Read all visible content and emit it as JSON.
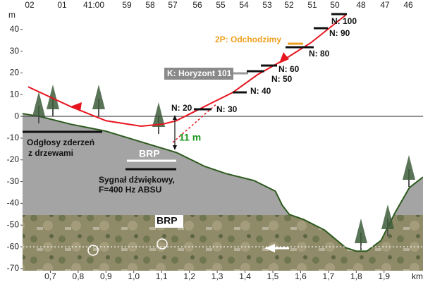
{
  "chart_data": {
    "type": "line",
    "x_label": "km",
    "y_label": "m",
    "xlim": [
      0.6,
      2.04
    ],
    "ylim": [
      -71,
      49
    ],
    "xticks": [
      {
        "value": 0.7,
        "label": "0,7"
      },
      {
        "value": 0.8,
        "label": "0,8"
      },
      {
        "value": 0.9,
        "label": "0,9"
      },
      {
        "value": 1.0,
        "label": "1,0"
      },
      {
        "value": 1.1,
        "label": "1,1"
      },
      {
        "value": 1.2,
        "label": "1,2"
      },
      {
        "value": 1.3,
        "label": "1,3"
      },
      {
        "value": 1.4,
        "label": "1,4"
      },
      {
        "value": 1.5,
        "label": "1,5"
      },
      {
        "value": 1.6,
        "label": "1,6"
      },
      {
        "value": 1.7,
        "label": "1,7"
      },
      {
        "value": 1.8,
        "label": "1,8"
      },
      {
        "value": 1.9,
        "label": "1,9"
      }
    ],
    "yticks": [
      40,
      30,
      20,
      10,
      0,
      -10,
      -20,
      -30,
      -40,
      -50,
      -60,
      -70
    ],
    "top_labels": [
      "02",
      "01",
      "41:00",
      "59",
      "58",
      "57",
      "56",
      "55",
      "54",
      "53",
      "52",
      "51",
      "50",
      "48",
      "47",
      "46"
    ],
    "baseline": 0,
    "ref_line": -60,
    "trajectory": {
      "color": "#e8141e",
      "x": [
        0.62,
        0.773,
        0.9,
        1.026,
        1.103,
        1.153,
        1.204,
        1.28,
        1.356,
        1.445,
        1.534,
        1.636,
        1.762
      ],
      "values": [
        13.6,
        4.5,
        -2,
        -4.5,
        -3.6,
        -2,
        1.3,
        6.2,
        11,
        19.2,
        25.6,
        33.8,
        46.6
      ]
    },
    "extrapolation": {
      "color": "#e8141e",
      "x": [
        1.14,
        1.3
      ],
      "values": [
        -12,
        6
      ]
    },
    "terrain": {
      "color": "#a4a4a4",
      "line_color": "#2d5a1e",
      "x": [
        0.6,
        0.671,
        0.773,
        0.9,
        1.026,
        1.153,
        1.255,
        1.331,
        1.432,
        1.509,
        1.534,
        1.559,
        1.61,
        1.686,
        1.762,
        1.8,
        1.838,
        1.889,
        1.94,
        1.991,
        2.04
      ],
      "values": [
        1.3,
        -0.3,
        -3.6,
        -6.8,
        -11.7,
        -16.6,
        -23,
        -26.3,
        -29.5,
        -34.4,
        -40.9,
        -45.1,
        -47.4,
        -52.3,
        -60.4,
        -62,
        -62,
        -57.1,
        -44.2,
        -32.8,
        -27.9
      ]
    },
    "annotations": [
      "Odgłosy zderzeń",
      "z drzewami",
      "BRP",
      "Sygnał dźwiękowy,",
      "F=400 Hz ABSU",
      "BRP",
      "11 m",
      "N: 20",
      "N: 30",
      "N: 40",
      "N: 50",
      "N: 60",
      "N: 80",
      "N: 90",
      "N: 100",
      "2P: Odchodzimy",
      "K: Horyzont 101"
    ]
  }
}
